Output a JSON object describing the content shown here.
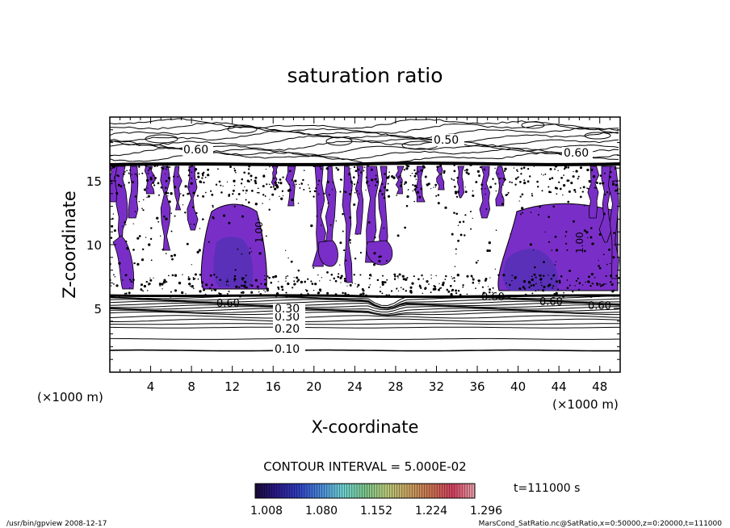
{
  "chart_data": {
    "type": "heatmap",
    "title": "saturation ratio",
    "xlabel": "X-coordinate",
    "ylabel": "Z-coordinate",
    "x_unit": "(×1000 m)",
    "y_unit": "(×1000 m)",
    "x_ticks": [
      "4",
      "8",
      "12",
      "16",
      "20",
      "24",
      "28",
      "32",
      "36",
      "40",
      "44",
      "48"
    ],
    "y_ticks": [
      "5",
      "10",
      "15"
    ],
    "xlim": [
      0,
      50
    ],
    "ylim": [
      0,
      20
    ],
    "contour_interval_text": "CONTOUR INTERVAL = 5.000E-02",
    "contour_labels": [
      "0.10",
      "0.20",
      "0.30",
      "0.30",
      "0.60",
      "0.50",
      "0.60",
      "0.60",
      "0.60",
      "1.00",
      "1.00",
      "0.60",
      "0.60"
    ],
    "colorbar": {
      "ticks": [
        "1.008",
        "1.080",
        "1.152",
        "1.224",
        "1.296"
      ],
      "colors": [
        "#1a0a3a",
        "#2a1a8a",
        "#3040c0",
        "#4a8ad8",
        "#6fd0d0",
        "#7ac48a",
        "#b8c878",
        "#c8a060",
        "#c87050",
        "#d04060",
        "#e8a0a8"
      ]
    },
    "time_label": "t=111000 s",
    "fill_color": "#7a2ec8",
    "fill_color_dark": "#5a30b8"
  },
  "footer": {
    "left": "/usr/bin/gpview   2008-12-17",
    "right": "MarsCond_SatRatio.nc@SatRatio,x=0:50000,z=0:20000,t=111000"
  }
}
